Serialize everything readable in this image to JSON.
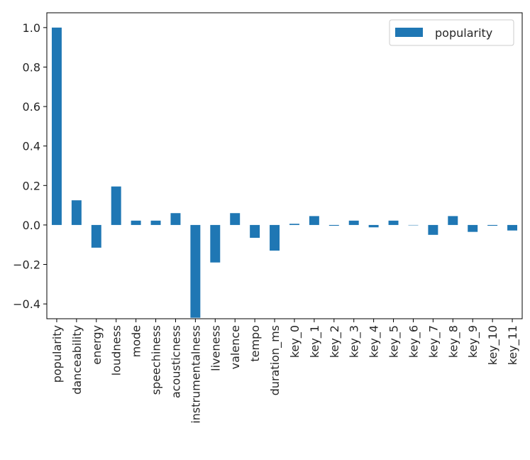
{
  "chart_data": {
    "type": "bar",
    "categories": [
      "popularity",
      "danceability",
      "energy",
      "loudness",
      "mode",
      "speechiness",
      "acousticness",
      "instrumentalness",
      "liveness",
      "valence",
      "tempo",
      "duration_ms",
      "key_0",
      "key_1",
      "key_2",
      "key_3",
      "key_4",
      "key_5",
      "key_6",
      "key_7",
      "key_8",
      "key_9",
      "key_10",
      "key_11"
    ],
    "series": [
      {
        "name": "popularity",
        "color": "#1f77b4",
        "values": [
          1.0,
          0.125,
          -0.115,
          0.195,
          0.022,
          0.022,
          0.06,
          -0.47,
          -0.19,
          0.06,
          -0.065,
          -0.13,
          0.006,
          0.045,
          -0.004,
          0.022,
          -0.012,
          0.022,
          0.0,
          -0.05,
          0.045,
          -0.035,
          -0.004,
          -0.028
        ]
      }
    ],
    "yticks": [
      1.0,
      0.8,
      0.6,
      0.4,
      0.2,
      0.0,
      -0.2,
      -0.4
    ],
    "ytick_labels": [
      "1.0",
      "0.8",
      "0.6",
      "0.4",
      "0.2",
      "0.0",
      "−0.2",
      "−0.4"
    ],
    "ylim": [
      -0.475,
      1.075
    ],
    "legend": {
      "position": "top-right",
      "label": "popularity"
    },
    "grid": false
  }
}
